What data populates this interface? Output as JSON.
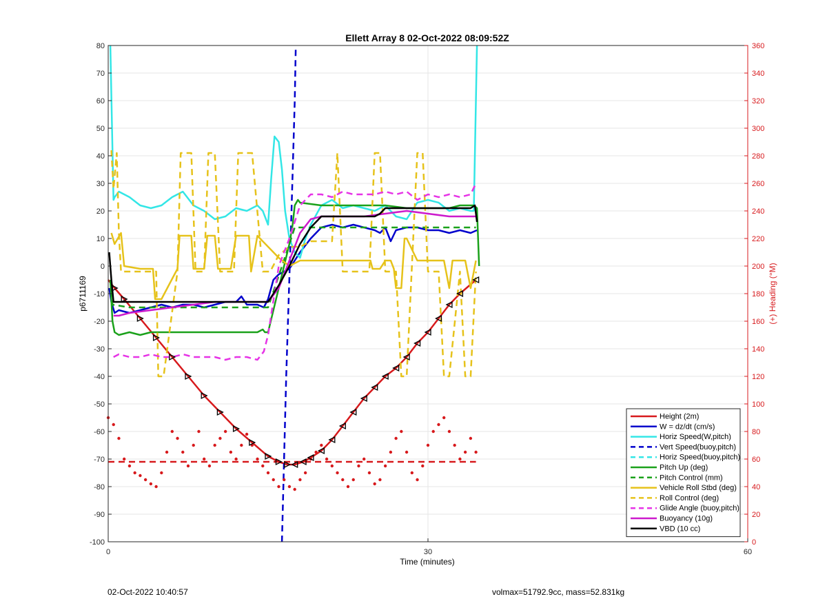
{
  "footer": {
    "left": "02-Oct-2022 10:40:57",
    "right": "volmax=51792.9cc, mass=52.831kg"
  },
  "colors": {
    "right_axis": "#d7191c",
    "grid": "#e6e6e6",
    "axis": "#262626"
  },
  "chart_data": {
    "type": "line",
    "title": "Ellett Array 8 02-Oct-2022 08:09:52Z",
    "xlabel": "Time (minutes)",
    "ylabel": "p6711169",
    "ylabel_right": "(+) Heading (°M)",
    "xlim": [
      0,
      60
    ],
    "ylim": [
      -100,
      80
    ],
    "ylim_right": [
      0,
      360
    ],
    "x_ticks": [
      0,
      30,
      60
    ],
    "y_ticks": [
      -100,
      -90,
      -80,
      -70,
      -60,
      -50,
      -40,
      -30,
      -20,
      -10,
      0,
      10,
      20,
      30,
      40,
      50,
      60,
      70,
      80
    ],
    "y_ticks_right": [
      0,
      20,
      40,
      60,
      80,
      100,
      120,
      140,
      160,
      180,
      200,
      220,
      240,
      260,
      280,
      300,
      320,
      340,
      360
    ],
    "grid": true,
    "legend_position": "bottom-right",
    "series": [
      {
        "name": "Height (2m)",
        "color": "#d7191c",
        "style": "solid",
        "x": [
          0,
          0.6,
          1.5,
          3,
          4.5,
          6,
          7.5,
          9,
          10.5,
          12,
          13.5,
          15,
          16,
          16.8,
          17.5,
          18.3,
          19,
          20,
          21,
          22,
          23,
          24,
          25,
          26,
          27,
          28,
          29,
          30,
          31,
          32,
          33,
          34.5
        ],
        "y": [
          -5,
          -8,
          -12,
          -19,
          -26,
          -33,
          -40,
          -47,
          -53,
          -59,
          -64,
          -69,
          -71,
          -72,
          -72,
          -71,
          -69.5,
          -67,
          -63,
          -58,
          -53,
          -48,
          -44,
          -40,
          -37,
          -33,
          -28,
          -24,
          -19,
          -14,
          -10,
          -5
        ]
      },
      {
        "name": "W = dz/dt (cm/s)",
        "color": "#0000cc",
        "style": "solid",
        "x": [
          0.1,
          0.3,
          0.6,
          1,
          2,
          3,
          4,
          5,
          6,
          7,
          8,
          9,
          10,
          11,
          12,
          12.5,
          13,
          14,
          14.6,
          15,
          15.5,
          16,
          16.5,
          17,
          18,
          19,
          20,
          21,
          22,
          23,
          24,
          25,
          25.5,
          26,
          26.5,
          27,
          28,
          29,
          30,
          31,
          32,
          33,
          34,
          34.6
        ],
        "y": [
          -8,
          -13,
          -17,
          -16,
          -17,
          -16,
          -15,
          -14,
          -15,
          -14,
          -14,
          -15,
          -14,
          -13,
          -13,
          -11,
          -14,
          -14,
          -15,
          -12,
          -5,
          -3,
          -2,
          -1,
          5,
          10,
          14,
          15,
          14,
          15,
          14,
          13,
          12,
          14,
          9,
          13,
          14,
          14,
          13,
          13,
          12,
          13,
          12,
          13
        ]
      },
      {
        "name": "Horiz Speed(W,pitch)",
        "color": "#33e6e6",
        "style": "solid",
        "x": [
          0.2,
          0.5,
          0.6,
          1,
          2,
          3,
          4,
          5,
          6,
          7,
          8,
          9,
          10,
          11,
          12,
          13,
          14,
          14.5,
          15,
          15.3,
          15.6,
          16,
          16.3,
          16.6,
          17,
          17.5,
          18,
          18.5,
          19,
          20,
          21,
          22,
          23,
          24,
          25,
          26,
          27,
          28,
          29,
          30,
          31,
          32,
          33,
          34,
          34.3,
          34.6
        ],
        "y": [
          80,
          24,
          25,
          27,
          25,
          22,
          21,
          22,
          25,
          27,
          22,
          20,
          17,
          18,
          21,
          20,
          22,
          20,
          15,
          32,
          47,
          45,
          35,
          20,
          10,
          5,
          3,
          10,
          15,
          22,
          24,
          21,
          22,
          21,
          20,
          22,
          18,
          17,
          23,
          24,
          23,
          20,
          21,
          20,
          20,
          80
        ]
      },
      {
        "name": "Vert Speed(buoy,pitch)",
        "color": "#0000cc",
        "style": "dashed",
        "x": [
          16.3,
          16.7,
          17.2,
          17.5,
          17.6
        ],
        "y": [
          -100,
          -40,
          20,
          60,
          80
        ]
      },
      {
        "name": "Horiz Speed(buoy,pitch)",
        "color": "#33e6e6",
        "style": "dashed",
        "x": [],
        "y": []
      },
      {
        "name": "Pitch Up (deg)",
        "color": "#1aa11a",
        "style": "solid",
        "x": [
          0.2,
          0.4,
          0.6,
          1,
          2,
          3,
          4,
          5,
          6,
          7,
          8,
          9,
          10,
          11,
          12,
          13,
          14,
          14.5,
          14.7,
          15,
          17,
          17.3,
          17.5,
          17.8,
          18,
          20,
          22,
          24,
          26,
          28,
          30,
          32,
          33,
          34.3,
          34.6,
          34.8
        ],
        "y": [
          -5,
          -20,
          -24,
          -25,
          -24,
          -25,
          -24,
          -24,
          -24,
          -24,
          -24,
          -24,
          -24,
          -24,
          -24,
          -24,
          -24,
          -23,
          -24,
          -24,
          8,
          15,
          22,
          24,
          23,
          22,
          22,
          22,
          22,
          21,
          21,
          21,
          22,
          22,
          21,
          0
        ]
      },
      {
        "name": "Pitch Control (mm)",
        "color": "#1aa11a",
        "style": "dashed",
        "x": [
          0.2,
          0.4,
          2,
          4,
          6,
          8,
          10,
          12,
          14,
          14.7,
          15,
          17,
          17.5,
          18,
          20,
          22,
          24,
          26,
          28,
          30,
          32,
          34,
          34.5
        ],
        "y": [
          -5,
          -14,
          -15,
          -15,
          -15,
          -15,
          -15,
          -15,
          -15,
          -15,
          -15,
          8,
          14,
          14,
          14,
          14,
          14,
          14,
          14,
          14,
          14,
          14,
          14
        ]
      },
      {
        "name": "Vehicle Roll Stbd (deg)",
        "color": "#e6c21a",
        "style": "solid",
        "x": [
          0.3,
          0.6,
          1.2,
          1.5,
          3,
          4.2,
          4.4,
          5,
          6.5,
          6.7,
          7.8,
          8,
          9,
          9.3,
          10,
          10.3,
          11.5,
          12,
          13.2,
          13.4,
          14,
          15,
          16,
          17,
          18,
          19,
          20,
          21,
          22,
          23,
          24,
          24.6,
          24.8,
          25.5,
          26,
          26.5,
          26.8,
          27,
          27.5,
          27.8,
          28,
          29,
          30,
          31,
          31.5,
          32,
          32.3,
          33,
          33.5,
          34,
          34.5
        ],
        "y": [
          12,
          8,
          12,
          0,
          -1,
          -1,
          -12,
          -12,
          -1,
          11,
          11,
          -1,
          -1,
          11,
          11,
          -1,
          -1,
          11,
          11,
          -2,
          11,
          7,
          3,
          0,
          2,
          2,
          2,
          2,
          2,
          2,
          2,
          2,
          -1,
          -1,
          2,
          2,
          -1,
          -8,
          -8,
          10,
          10,
          2,
          2,
          2,
          2,
          -8,
          2,
          2,
          2,
          -8,
          2
        ]
      },
      {
        "name": "Roll Control (deg)",
        "color": "#e6c21a",
        "style": "dashed",
        "x": [
          0.3,
          0.5,
          0.8,
          1.0,
          1.2,
          3,
          4.5,
          4.7,
          5.2,
          6.5,
          6.8,
          7.8,
          8.2,
          9,
          9.4,
          10,
          10.5,
          11.8,
          12.2,
          13.5,
          14.5,
          15.2,
          16,
          17,
          18,
          19,
          20,
          21,
          21.5,
          22,
          23,
          24.5,
          25,
          25.5,
          26,
          27,
          27.5,
          28,
          29,
          29.5,
          30,
          31,
          31.5,
          32,
          33,
          33.5,
          34,
          34.5
        ],
        "y": [
          42,
          28,
          41,
          12,
          -2,
          -2,
          -2,
          -40,
          -40,
          -2,
          41,
          41,
          -2,
          -2,
          41,
          41,
          -2,
          -2,
          41,
          41,
          -2,
          -2,
          4,
          7,
          7,
          9,
          9,
          9,
          41,
          -2,
          -2,
          -2,
          41,
          41,
          -2,
          -2,
          -40,
          -40,
          41,
          41,
          -2,
          -2,
          -40,
          -40,
          -2,
          -40,
          -40,
          -2
        ]
      },
      {
        "name": "Glide Angle (buoy,pitch)",
        "color": "#e633e6",
        "style": "dashed",
        "x": [
          0.5,
          1,
          2,
          3,
          4,
          5,
          6,
          7,
          8,
          9,
          10,
          11,
          12,
          13,
          14,
          14.6,
          15,
          16,
          17,
          18,
          19,
          20,
          21,
          22,
          23,
          24,
          25,
          26,
          27,
          28,
          29,
          30,
          31,
          32,
          33,
          34,
          34.5
        ],
        "y": [
          -33,
          -32,
          -33,
          -33,
          -32,
          -33,
          -33,
          -32,
          -33,
          -33,
          -33,
          -34,
          -33,
          -33,
          -34,
          -31,
          -25,
          0,
          10,
          22,
          26,
          26,
          25,
          27,
          26,
          26,
          26,
          27,
          26,
          27,
          24,
          26,
          25,
          26,
          25,
          26,
          30
        ]
      },
      {
        "name": "Buoyancy (10g)",
        "color": "#cc1acc",
        "style": "solid",
        "x": [
          0.5,
          1,
          2,
          4,
          6,
          8,
          10,
          12,
          14,
          14.6,
          15,
          16,
          17,
          18,
          19,
          20,
          22,
          24,
          26,
          28,
          30,
          32,
          34,
          34.5
        ],
        "y": [
          -18,
          -18,
          -17,
          -16,
          -15,
          -14,
          -13,
          -13,
          -13,
          -13,
          -13,
          -8,
          2,
          12,
          17,
          18,
          18,
          18,
          19,
          20,
          19,
          18,
          18,
          18
        ]
      },
      {
        "name": "VBD (10 cc)",
        "color": "#000000",
        "style": "solid",
        "x": [
          0.1,
          0.3,
          0.5,
          2,
          4,
          6,
          8,
          10,
          12,
          14,
          14.6,
          15,
          16,
          17,
          18,
          19,
          20,
          22,
          24,
          25,
          25.5,
          26,
          28,
          30,
          32,
          34,
          34.4,
          34.6
        ],
        "y": [
          5,
          -5,
          -13,
          -13,
          -13,
          -13,
          -13,
          -13,
          -13,
          -13,
          -13,
          -13,
          -7,
          0,
          8,
          14,
          18,
          18,
          18,
          18,
          19,
          21,
          21,
          21,
          21,
          21,
          22,
          16
        ]
      },
      {
        "name": "Heading",
        "color": "#d7191c",
        "style": "dotted",
        "axis": "right",
        "x": [
          0,
          0.5,
          1,
          1.5,
          2,
          2.5,
          3,
          3.5,
          4,
          4.5,
          5,
          5.5,
          6,
          6.5,
          7,
          7.5,
          8,
          8.5,
          9,
          9.5,
          10,
          10.5,
          11,
          11.5,
          12,
          12.5,
          13,
          13.5,
          14,
          14.5,
          15,
          15.5,
          16,
          16.5,
          17,
          17.5,
          18,
          18.5,
          19,
          19.5,
          20,
          20.5,
          21,
          21.5,
          22,
          22.5,
          23,
          23.5,
          24,
          24.5,
          25,
          25.5,
          26,
          26.5,
          27,
          27.5,
          28,
          28.5,
          29,
          29.5,
          30,
          30.5,
          31,
          31.5,
          32,
          32.5,
          33,
          33.5,
          34,
          34.5
        ],
        "y": [
          90,
          85,
          75,
          60,
          55,
          50,
          48,
          45,
          42,
          40,
          50,
          65,
          80,
          75,
          65,
          55,
          70,
          80,
          60,
          55,
          70,
          75,
          80,
          65,
          60,
          70,
          78,
          70,
          60,
          55,
          50,
          45,
          40,
          45,
          40,
          38,
          45,
          50,
          60,
          65,
          70,
          60,
          55,
          50,
          45,
          40,
          45,
          55,
          60,
          50,
          42,
          45,
          55,
          65,
          75,
          80,
          65,
          50,
          45,
          55,
          70,
          80,
          85,
          90,
          80,
          70,
          60,
          65,
          75,
          65
        ]
      },
      {
        "name": "Heading mean",
        "color": "#d7191c",
        "style": "dashed",
        "axis": "right",
        "x": [
          0,
          34.5
        ],
        "y": [
          58,
          58
        ]
      }
    ]
  }
}
